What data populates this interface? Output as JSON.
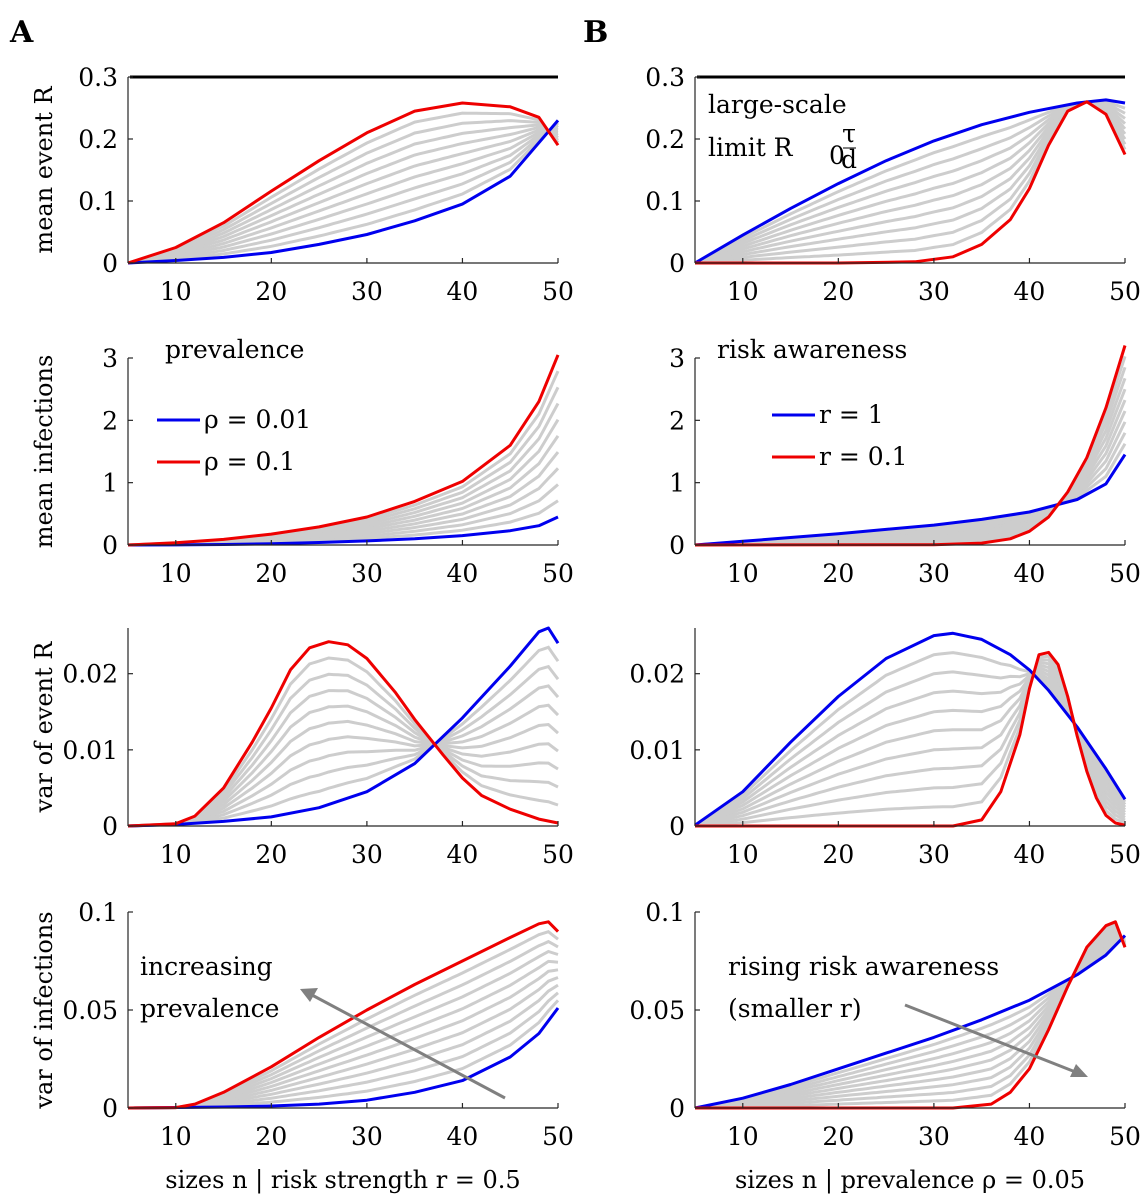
{
  "panel_labels": [
    "A",
    "B"
  ],
  "chart_data": [
    {
      "id": "A1",
      "type": "line",
      "ylabel": "mean event R",
      "xlim": [
        5,
        50
      ],
      "ylim": [
        0,
        0.3
      ],
      "xticks": [
        10,
        20,
        30,
        40,
        50
      ],
      "yticks": [
        0,
        0.1,
        0.2,
        0.3
      ],
      "ytick_labels": [
        "0",
        "0.1",
        "0.2",
        "0.3"
      ],
      "limit_line": {
        "y": 0.3,
        "color": "#000000"
      },
      "series": [
        {
          "color": "#0000ee",
          "x": [
            5,
            10,
            15,
            20,
            25,
            30,
            35,
            40,
            45,
            50
          ],
          "y": [
            0,
            0.004,
            0.009,
            0.017,
            0.03,
            0.046,
            0.068,
            0.095,
            0.14,
            0.23
          ]
        },
        {
          "color": "#ee0000",
          "x": [
            5,
            10,
            15,
            20,
            25,
            30,
            35,
            40,
            45,
            48,
            50
          ],
          "y": [
            0,
            0.025,
            0.065,
            0.116,
            0.165,
            0.21,
            0.245,
            0.258,
            0.252,
            0.235,
            0.19
          ]
        }
      ]
    },
    {
      "id": "B1",
      "type": "line",
      "ylabel": "",
      "xlim": [
        5,
        50
      ],
      "ylim": [
        0,
        0.3
      ],
      "xticks": [
        10,
        20,
        30,
        40,
        50
      ],
      "yticks": [
        0,
        0.1,
        0.2,
        0.3
      ],
      "ytick_labels": [
        "0",
        "0.1",
        "0.2",
        "0.3"
      ],
      "limit_line": {
        "y": 0.3,
        "color": "#000000"
      },
      "annotation": {
        "line1": "large-scale",
        "line2": "limit R",
        "sub": "0",
        "frac_num": "τ",
        "frac_den": "d"
      },
      "series": [
        {
          "color": "#0000ee",
          "x": [
            5,
            10,
            15,
            20,
            25,
            30,
            35,
            40,
            45,
            48,
            50
          ],
          "y": [
            0,
            0.045,
            0.088,
            0.128,
            0.165,
            0.197,
            0.223,
            0.243,
            0.258,
            0.263,
            0.258
          ]
        },
        {
          "color": "#ee0000",
          "x": [
            5,
            20,
            28,
            32,
            35,
            38,
            40,
            42,
            44,
            46,
            48,
            50
          ],
          "y": [
            0,
            0,
            0.002,
            0.01,
            0.03,
            0.07,
            0.12,
            0.19,
            0.245,
            0.26,
            0.24,
            0.175
          ]
        }
      ]
    },
    {
      "id": "A2",
      "type": "line",
      "ylabel": "mean infections",
      "xlim": [
        5,
        50
      ],
      "ylim": [
        0,
        3
      ],
      "xticks": [
        10,
        20,
        30,
        40,
        50
      ],
      "yticks": [
        0,
        1,
        2,
        3
      ],
      "ytick_labels": [
        "0",
        "1",
        "2",
        "3"
      ],
      "legend": {
        "title": "prevalence",
        "entries": [
          "ρ = 0.01",
          "ρ = 0.1"
        ]
      },
      "series": [
        {
          "color": "#0000ee",
          "x": [
            5,
            10,
            15,
            20,
            25,
            30,
            35,
            40,
            45,
            48,
            50
          ],
          "y": [
            0,
            0.002,
            0.008,
            0.02,
            0.04,
            0.065,
            0.1,
            0.15,
            0.23,
            0.31,
            0.45
          ]
        },
        {
          "color": "#ee0000",
          "x": [
            5,
            10,
            15,
            20,
            25,
            30,
            35,
            40,
            45,
            48,
            50
          ],
          "y": [
            0,
            0.035,
            0.09,
            0.175,
            0.29,
            0.45,
            0.7,
            1.02,
            1.6,
            2.3,
            3.05
          ]
        }
      ]
    },
    {
      "id": "B2",
      "type": "line",
      "ylabel": "",
      "xlim": [
        5,
        50
      ],
      "ylim": [
        0,
        3
      ],
      "xticks": [
        10,
        20,
        30,
        40,
        50
      ],
      "yticks": [
        0,
        1,
        2,
        3
      ],
      "ytick_labels": [
        "0",
        "1",
        "2",
        "3"
      ],
      "legend": {
        "title": "risk awareness",
        "entries": [
          "r = 1",
          "r = 0.1"
        ]
      },
      "series": [
        {
          "color": "#0000ee",
          "x": [
            5,
            10,
            15,
            20,
            25,
            30,
            35,
            40,
            45,
            48,
            50
          ],
          "y": [
            0,
            0.06,
            0.12,
            0.18,
            0.25,
            0.32,
            0.41,
            0.53,
            0.73,
            0.98,
            1.45
          ]
        },
        {
          "color": "#ee0000",
          "x": [
            5,
            30,
            35,
            38,
            40,
            42,
            44,
            46,
            48,
            50
          ],
          "y": [
            0,
            0.005,
            0.03,
            0.1,
            0.22,
            0.45,
            0.85,
            1.4,
            2.2,
            3.2
          ]
        }
      ]
    },
    {
      "id": "A3",
      "type": "line",
      "ylabel": "var of event R",
      "xlim": [
        5,
        50
      ],
      "ylim": [
        0,
        0.026
      ],
      "xticks": [
        10,
        20,
        30,
        40,
        50
      ],
      "yticks": [
        0,
        0.01,
        0.02
      ],
      "ytick_labels": [
        "0",
        "0.01",
        "0.02"
      ],
      "series": [
        {
          "color": "#0000ee",
          "x": [
            5,
            10,
            15,
            20,
            25,
            30,
            35,
            40,
            45,
            48,
            49,
            50
          ],
          "y": [
            0,
            0.0002,
            0.0006,
            0.0012,
            0.0024,
            0.0045,
            0.0082,
            0.0142,
            0.021,
            0.0255,
            0.026,
            0.024
          ]
        },
        {
          "color": "#ee0000",
          "x": [
            5,
            10,
            12,
            15,
            18,
            20,
            22,
            24,
            26,
            28,
            30,
            33,
            35,
            38,
            40,
            42,
            45,
            48,
            50
          ],
          "y": [
            0,
            0.0003,
            0.0013,
            0.005,
            0.011,
            0.0155,
            0.0205,
            0.0234,
            0.0242,
            0.0238,
            0.022,
            0.0175,
            0.014,
            0.0093,
            0.0063,
            0.004,
            0.0022,
            0.0009,
            0.0004
          ]
        }
      ]
    },
    {
      "id": "B3",
      "type": "line",
      "ylabel": "",
      "xlim": [
        5,
        50
      ],
      "ylim": [
        0,
        0.026
      ],
      "xticks": [
        10,
        20,
        30,
        40,
        50
      ],
      "yticks": [
        0,
        0.01,
        0.02
      ],
      "ytick_labels": [
        "0",
        "0.01",
        "0.02"
      ],
      "series": [
        {
          "color": "#0000ee",
          "x": [
            5,
            10,
            15,
            20,
            25,
            30,
            32,
            35,
            38,
            40,
            42,
            45,
            48,
            50
          ],
          "y": [
            0.0001,
            0.0045,
            0.011,
            0.017,
            0.022,
            0.025,
            0.0253,
            0.0245,
            0.0225,
            0.0205,
            0.0178,
            0.013,
            0.0075,
            0.0035
          ]
        },
        {
          "color": "#ee0000",
          "x": [
            5,
            32,
            35,
            37,
            39,
            40,
            41,
            42,
            43,
            44,
            45,
            46,
            47,
            48,
            49,
            50
          ],
          "y": [
            0,
            0,
            0.0008,
            0.0045,
            0.012,
            0.018,
            0.0225,
            0.0228,
            0.0212,
            0.017,
            0.0118,
            0.0072,
            0.0037,
            0.0014,
            0.0004,
            0.0001
          ]
        }
      ]
    },
    {
      "id": "A4",
      "type": "line",
      "ylabel": "var of infections",
      "xlabel": "sizes n | risk strength r = 0.5",
      "xlim": [
        5,
        50
      ],
      "ylim": [
        0,
        0.1
      ],
      "xticks": [
        10,
        20,
        30,
        40,
        50
      ],
      "yticks": [
        0,
        0.05,
        0.1
      ],
      "ytick_labels": [
        "0",
        "0.05",
        "0.1"
      ],
      "annotation": {
        "line1": "increasing",
        "line2": "prevalence"
      },
      "series": [
        {
          "color": "#0000ee",
          "x": [
            5,
            15,
            20,
            25,
            30,
            35,
            40,
            45,
            48,
            50
          ],
          "y": [
            0,
            0.0005,
            0.001,
            0.002,
            0.004,
            0.008,
            0.014,
            0.026,
            0.038,
            0.051
          ]
        },
        {
          "color": "#ee0000",
          "x": [
            5,
            10,
            12,
            15,
            20,
            25,
            30,
            35,
            40,
            45,
            48,
            49,
            50
          ],
          "y": [
            0,
            0.0002,
            0.002,
            0.008,
            0.021,
            0.036,
            0.05,
            0.063,
            0.075,
            0.087,
            0.094,
            0.095,
            0.09
          ]
        }
      ]
    },
    {
      "id": "B4",
      "type": "line",
      "ylabel": "",
      "xlabel": "sizes n | prevalence ρ = 0.05",
      "xlim": [
        5,
        50
      ],
      "ylim": [
        0,
        0.1
      ],
      "xticks": [
        10,
        20,
        30,
        40,
        50
      ],
      "yticks": [
        0,
        0.05,
        0.1
      ],
      "ytick_labels": [
        "0",
        "0.05",
        "0.1"
      ],
      "annotation": {
        "line1": "rising risk awareness",
        "line2": "(smaller r)"
      },
      "series": [
        {
          "color": "#0000ee",
          "x": [
            5,
            10,
            15,
            20,
            25,
            30,
            35,
            40,
            45,
            48,
            50
          ],
          "y": [
            0,
            0.005,
            0.012,
            0.02,
            0.028,
            0.036,
            0.045,
            0.055,
            0.068,
            0.078,
            0.088
          ]
        },
        {
          "color": "#ee0000",
          "x": [
            5,
            32,
            36,
            38,
            40,
            42,
            44,
            46,
            48,
            49,
            50
          ],
          "y": [
            0,
            0,
            0.002,
            0.008,
            0.02,
            0.04,
            0.062,
            0.082,
            0.093,
            0.095,
            0.082
          ]
        }
      ]
    }
  ]
}
